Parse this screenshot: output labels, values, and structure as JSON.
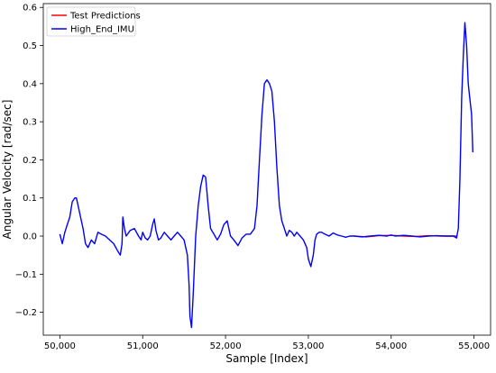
{
  "chart_data": {
    "type": "line",
    "title": "",
    "xlabel": "Sample [Index]",
    "ylabel": "Angular Velocity [rad/sec]",
    "xlim": [
      49800,
      55200
    ],
    "ylim": [
      -0.26,
      0.61
    ],
    "x_ticks": [
      50000,
      51000,
      52000,
      53000,
      54000,
      55000
    ],
    "x_tick_labels": [
      "50,000",
      "51,000",
      "52,000",
      "53,000",
      "54,000",
      "55,000"
    ],
    "y_ticks": [
      -0.2,
      -0.1,
      0.0,
      0.1,
      0.2,
      0.3,
      0.4,
      0.5,
      0.6
    ],
    "y_tick_labels": [
      "−0.2",
      "−0.1",
      "0.0",
      "0.1",
      "0.2",
      "0.3",
      "0.4",
      "0.5",
      "0.6"
    ],
    "grid": false,
    "legend_position": "top-left",
    "series": [
      {
        "name": "Test Predictions",
        "color": "#ff0000",
        "x": [
          53550,
          53700,
          53850,
          54000,
          54150,
          54300,
          54450,
          54600,
          54750,
          54790
        ],
        "y": [
          0.0,
          -0.002,
          0.001,
          0.002,
          0.0,
          -0.001,
          0.001,
          0.0,
          0.0,
          0.0
        ]
      },
      {
        "name": "High_End_IMU",
        "color": "#0000ff",
        "x": [
          50000,
          50030,
          50060,
          50090,
          50120,
          50150,
          50180,
          50200,
          50220,
          50250,
          50280,
          50310,
          50340,
          50380,
          50420,
          50460,
          50500,
          50550,
          50600,
          50650,
          50700,
          50730,
          50750,
          50760,
          50780,
          50800,
          50850,
          50900,
          50950,
          50980,
          51000,
          51030,
          51060,
          51090,
          51120,
          51140,
          51160,
          51190,
          51220,
          51260,
          51300,
          51340,
          51380,
          51420,
          51460,
          51500,
          51540,
          51560,
          51570,
          51590,
          51610,
          51640,
          51670,
          51700,
          51730,
          51760,
          51790,
          51820,
          51860,
          51900,
          51940,
          51980,
          52020,
          52060,
          52100,
          52150,
          52200,
          52250,
          52300,
          52350,
          52380,
          52410,
          52440,
          52470,
          52500,
          52530,
          52560,
          52590,
          52620,
          52650,
          52680,
          52710,
          52740,
          52770,
          52800,
          52830,
          52860,
          52900,
          52940,
          52980,
          53000,
          53030,
          53060,
          53080,
          53100,
          53130,
          53160,
          53200,
          53250,
          53300,
          53350,
          53400,
          53450,
          53500,
          53550,
          53650,
          53750,
          53850,
          53950,
          54000,
          54050,
          54150,
          54250,
          54350,
          54450,
          54550,
          54650,
          54750,
          54790,
          54810,
          54830,
          54850,
          54870,
          54890,
          54910,
          54930,
          54950,
          54970,
          54985
        ],
        "y": [
          0.005,
          -0.02,
          0.01,
          0.03,
          0.05,
          0.09,
          0.1,
          0.1,
          0.08,
          0.05,
          0.02,
          -0.02,
          -0.03,
          -0.01,
          -0.02,
          0.01,
          0.005,
          0.0,
          -0.01,
          -0.02,
          -0.04,
          -0.05,
          -0.02,
          0.05,
          0.02,
          0.0,
          0.015,
          0.02,
          0.0,
          -0.01,
          0.01,
          -0.005,
          -0.01,
          0.0,
          0.03,
          0.045,
          0.015,
          -0.01,
          -0.005,
          0.01,
          0.0,
          -0.01,
          0.0,
          0.01,
          0.0,
          -0.01,
          -0.05,
          -0.13,
          -0.21,
          -0.24,
          -0.15,
          0.0,
          0.08,
          0.13,
          0.16,
          0.155,
          0.08,
          0.02,
          0.005,
          -0.01,
          0.005,
          0.03,
          0.04,
          0.0,
          -0.01,
          -0.025,
          -0.005,
          0.005,
          0.005,
          0.02,
          0.08,
          0.2,
          0.32,
          0.4,
          0.41,
          0.4,
          0.38,
          0.3,
          0.18,
          0.08,
          0.04,
          0.02,
          0.0,
          0.015,
          0.01,
          0.0,
          0.01,
          0.0,
          -0.01,
          -0.03,
          -0.06,
          -0.08,
          -0.05,
          -0.01,
          0.005,
          0.01,
          0.01,
          0.005,
          0.0,
          0.008,
          0.003,
          0.0,
          -0.003,
          0.0,
          0.0,
          -0.002,
          0.0,
          0.002,
          0.0,
          0.003,
          0.0,
          0.002,
          0.0,
          -0.002,
          0.0,
          0.001,
          0.0,
          0.0,
          -0.005,
          0.02,
          0.15,
          0.36,
          0.47,
          0.56,
          0.5,
          0.4,
          0.36,
          0.32,
          0.22
        ]
      }
    ]
  }
}
